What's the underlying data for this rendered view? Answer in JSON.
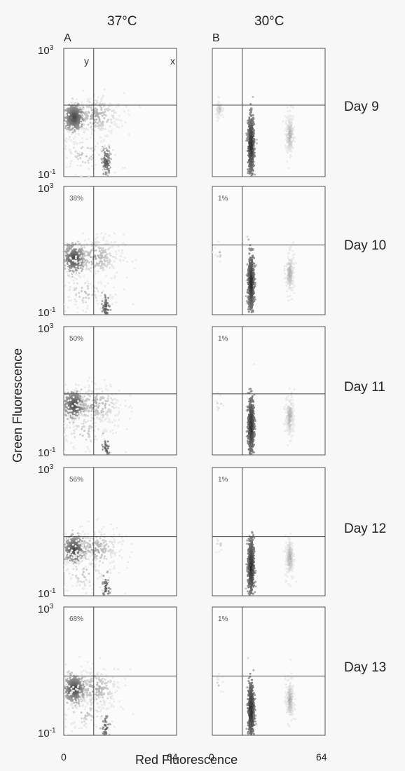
{
  "columns": [
    {
      "title": "37°C",
      "panel_letter": "A"
    },
    {
      "title": "30°C",
      "panel_letter": "B"
    }
  ],
  "axis": {
    "xlabel": "Red Fluorescence",
    "ylabel": "Green Fluorescence",
    "y_top": "10",
    "y_top_exp": "3",
    "y_bottom": "10",
    "y_bottom_exp": "-1",
    "x_left": "0",
    "x_right": "64"
  },
  "quadrant_labels": {
    "left": "y",
    "right": "x"
  },
  "days": [
    "Day 9",
    "Day 10",
    "Day 11",
    "Day 12",
    "Day 13"
  ],
  "percent_labels": {
    "col_37": [
      "",
      "38%",
      "50%",
      "56%",
      "68%"
    ],
    "col_30": [
      "",
      "1%",
      "1%",
      "1%",
      "1%"
    ]
  },
  "chart_data": {
    "type": "scatter",
    "title": "",
    "xlabel": "Red Fluorescence",
    "ylabel": "Green Fluorescence",
    "xlim": [
      0,
      64
    ],
    "ylim": [
      0.1,
      1000
    ],
    "y_scale": "log",
    "grid": false,
    "panels": [
      {
        "column": "37°C",
        "row": "Day 9",
        "gate_x": 17,
        "gate_y": 17,
        "label": ""
      },
      {
        "column": "37°C",
        "row": "Day 10",
        "gate_x": 17,
        "gate_y": 15,
        "label": "38%"
      },
      {
        "column": "37°C",
        "row": "Day 11",
        "gate_x": 17,
        "gate_y": 8,
        "label": "50%"
      },
      {
        "column": "37°C",
        "row": "Day 12",
        "gate_x": 17,
        "gate_y": 7,
        "label": "56%"
      },
      {
        "column": "37°C",
        "row": "Day 13",
        "gate_x": 17,
        "gate_y": 7,
        "label": "68%"
      },
      {
        "column": "30°C",
        "row": "Day 9",
        "gate_x": 17,
        "gate_y": 17,
        "label": ""
      },
      {
        "column": "30°C",
        "row": "Day 10",
        "gate_x": 17,
        "gate_y": 15,
        "label": "1%"
      },
      {
        "column": "30°C",
        "row": "Day 11",
        "gate_x": 17,
        "gate_y": 8,
        "label": "1%"
      },
      {
        "column": "30°C",
        "row": "Day 12",
        "gate_x": 17,
        "gate_y": 7,
        "label": "1%"
      },
      {
        "column": "30°C",
        "row": "Day 13",
        "gate_x": 17,
        "gate_y": 7,
        "label": "1%"
      }
    ]
  }
}
